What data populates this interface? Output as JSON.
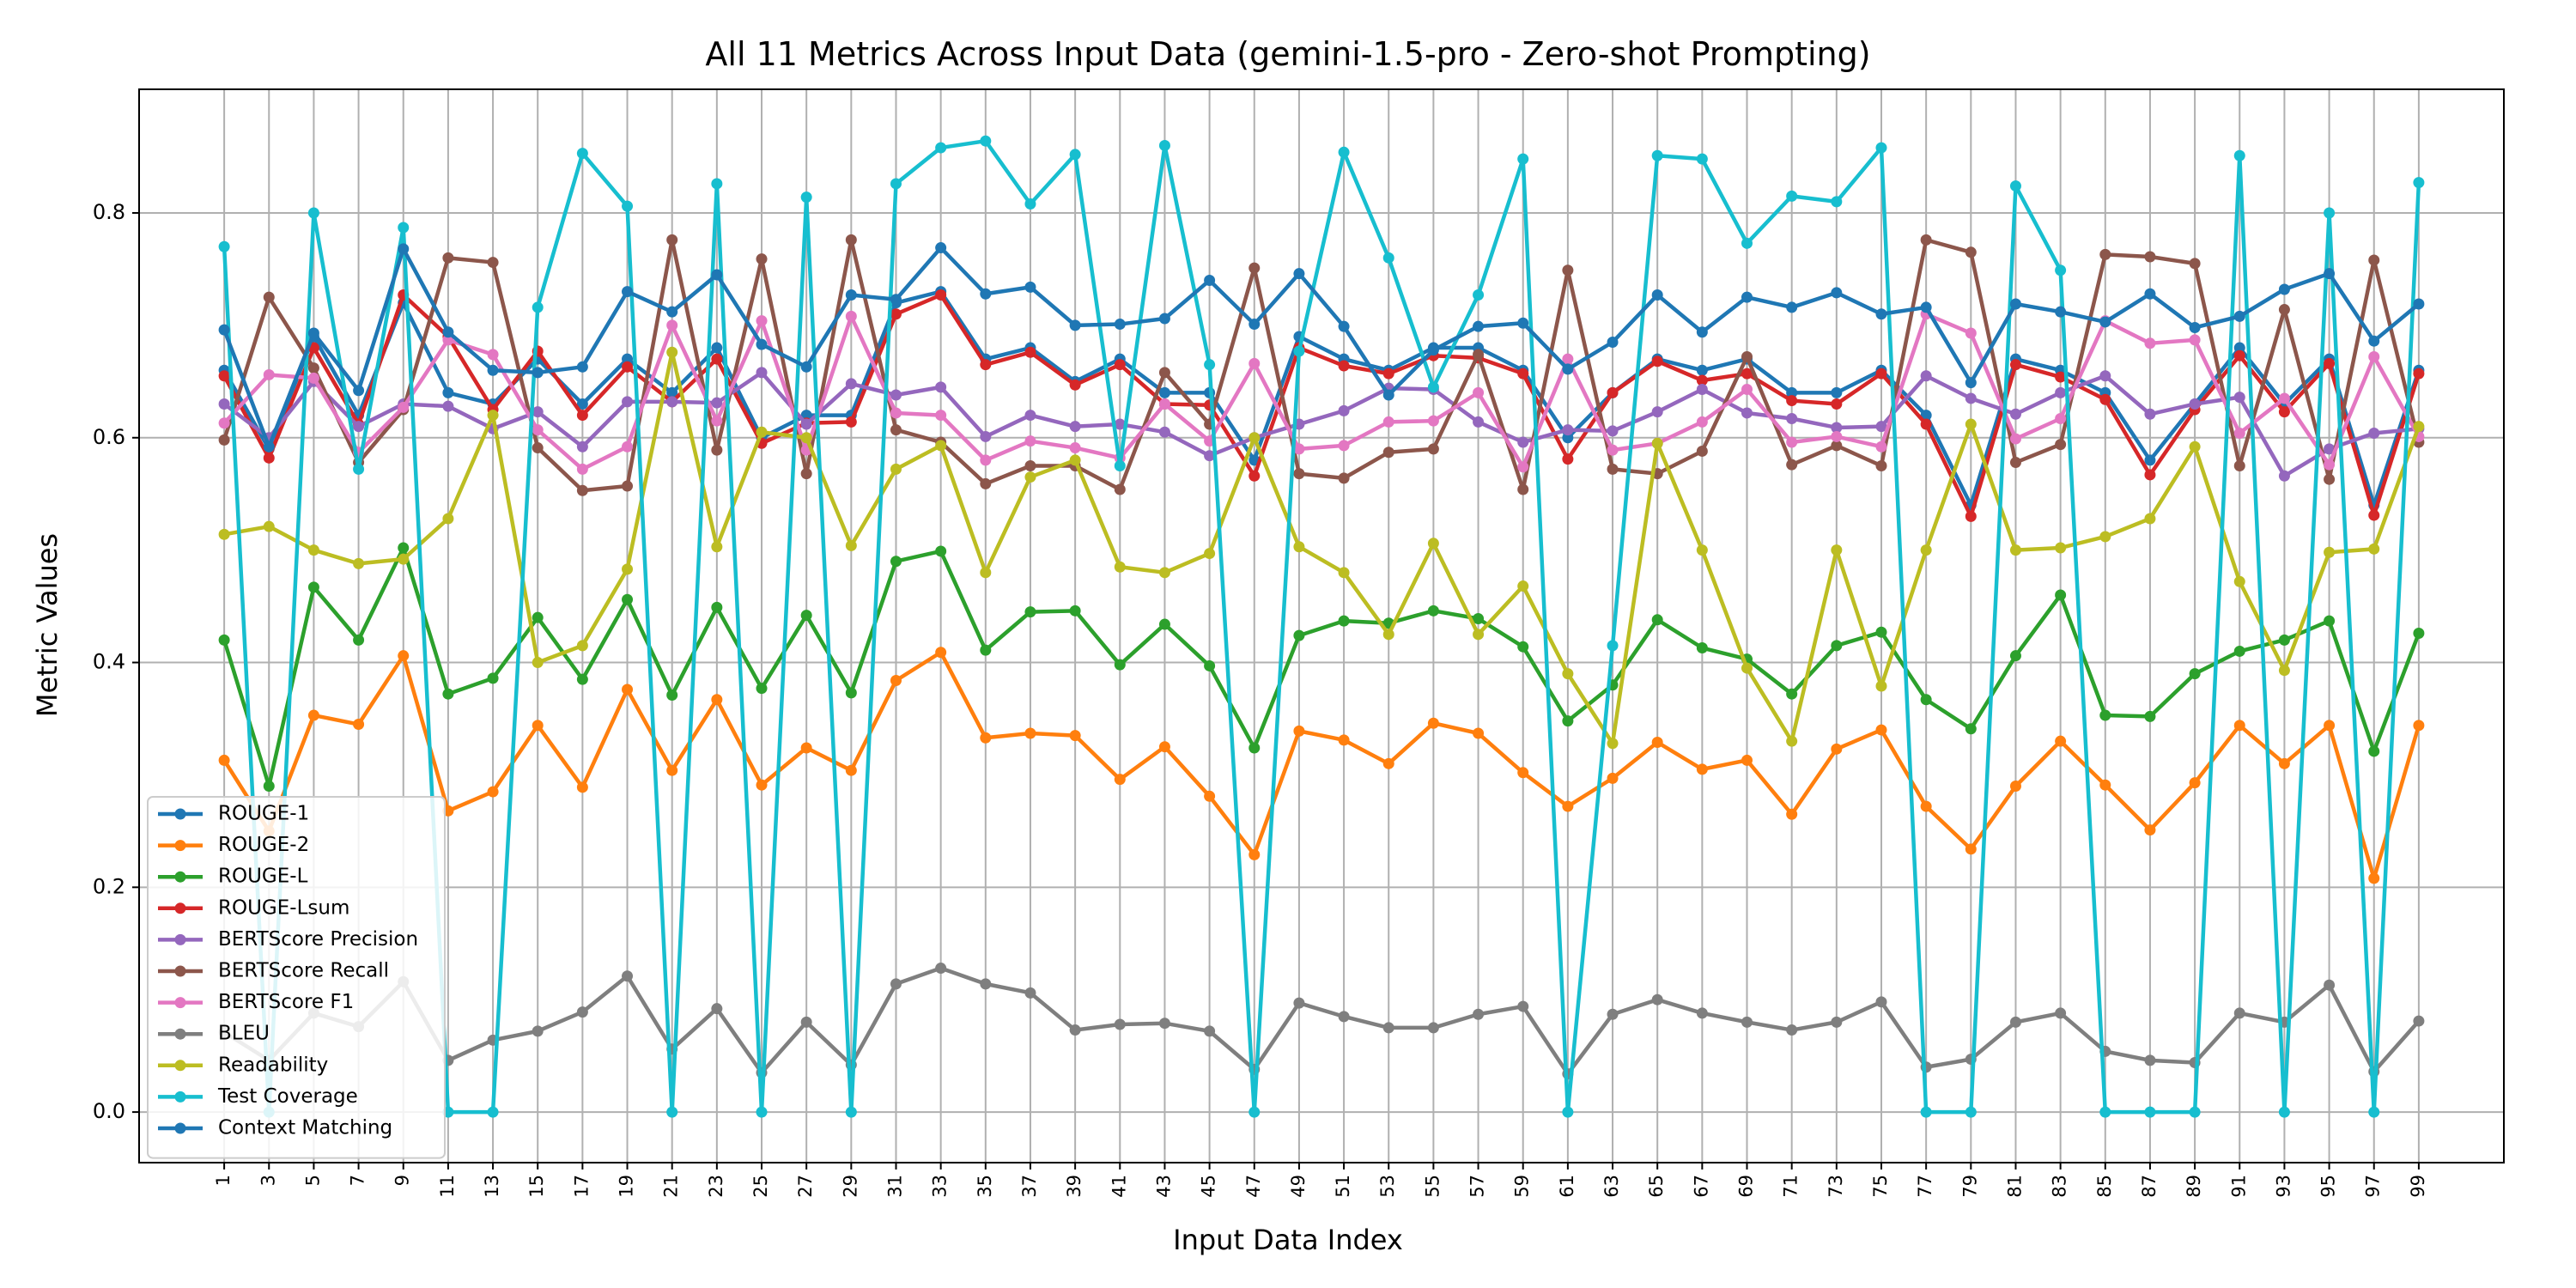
{
  "chart_data": {
    "type": "line",
    "title": "All 11 Metrics Across Input Data (gemini-1.5-pro - Zero-shot Prompting)",
    "xlabel": "Input Data Index",
    "ylabel": "Metric Values",
    "x": [
      1,
      3,
      5,
      7,
      9,
      11,
      13,
      15,
      17,
      19,
      21,
      23,
      25,
      27,
      29,
      31,
      33,
      35,
      37,
      39,
      41,
      43,
      45,
      47,
      49,
      51,
      53,
      55,
      57,
      59,
      61,
      63,
      65,
      67,
      69,
      71,
      73,
      75,
      77,
      79,
      81,
      83,
      85,
      87,
      89,
      91,
      93,
      95,
      97,
      99
    ],
    "xlim": [
      -2.8,
      102.8
    ],
    "ylim": [
      -0.045,
      0.91
    ],
    "yticks": [
      0.0,
      0.2,
      0.4,
      0.6,
      0.8
    ],
    "grid": true,
    "legend_position": "lower-left",
    "series": [
      {
        "name": "ROUGE-1",
        "color": "#1f77b4",
        "values": [
          0.66,
          0.59,
          0.69,
          0.62,
          0.72,
          0.64,
          0.63,
          0.67,
          0.63,
          0.67,
          0.64,
          0.68,
          0.6,
          0.62,
          0.62,
          0.72,
          0.73,
          0.67,
          0.68,
          0.65,
          0.67,
          0.64,
          0.64,
          0.58,
          0.69,
          0.67,
          0.66,
          0.68,
          0.68,
          0.66,
          0.6,
          0.64,
          0.67,
          0.66,
          0.67,
          0.64,
          0.64,
          0.66,
          0.62,
          0.54,
          0.67,
          0.66,
          0.64,
          0.58,
          0.63,
          0.68,
          0.63,
          0.67,
          0.54,
          0.66
        ]
      },
      {
        "name": "ROUGE-2",
        "color": "#ff7f0e",
        "values": [
          0.313,
          0.25,
          0.353,
          0.345,
          0.406,
          0.268,
          0.285,
          0.344,
          0.289,
          0.376,
          0.304,
          0.367,
          0.291,
          0.324,
          0.304,
          0.384,
          0.409,
          0.333,
          0.337,
          0.335,
          0.296,
          0.325,
          0.281,
          0.229,
          0.339,
          0.331,
          0.31,
          0.346,
          0.337,
          0.302,
          0.272,
          0.297,
          0.329,
          0.305,
          0.313,
          0.265,
          0.323,
          0.34,
          0.272,
          0.234,
          0.29,
          0.33,
          0.291,
          0.251,
          0.293,
          0.344,
          0.31,
          0.344,
          0.208,
          0.344
        ]
      },
      {
        "name": "ROUGE-L",
        "color": "#2ca02c",
        "values": [
          0.42,
          0.29,
          0.467,
          0.42,
          0.502,
          0.372,
          0.386,
          0.44,
          0.385,
          0.456,
          0.371,
          0.449,
          0.377,
          0.442,
          0.373,
          0.49,
          0.499,
          0.411,
          0.445,
          0.446,
          0.398,
          0.434,
          0.397,
          0.324,
          0.424,
          0.437,
          0.435,
          0.446,
          0.439,
          0.414,
          0.348,
          0.38,
          0.438,
          0.413,
          0.403,
          0.372,
          0.415,
          0.427,
          0.367,
          0.341,
          0.406,
          0.46,
          0.353,
          0.352,
          0.39,
          0.41,
          0.42,
          0.437,
          0.321,
          0.426
        ]
      },
      {
        "name": "ROUGE-Lsum",
        "color": "#d62728",
        "values": [
          0.655,
          0.582,
          0.68,
          0.612,
          0.727,
          0.69,
          0.625,
          0.677,
          0.62,
          0.663,
          0.632,
          0.67,
          0.595,
          0.613,
          0.614,
          0.71,
          0.727,
          0.665,
          0.676,
          0.647,
          0.665,
          0.63,
          0.629,
          0.566,
          0.68,
          0.664,
          0.657,
          0.673,
          0.671,
          0.657,
          0.581,
          0.64,
          0.668,
          0.651,
          0.657,
          0.633,
          0.63,
          0.657,
          0.612,
          0.53,
          0.665,
          0.654,
          0.634,
          0.567,
          0.625,
          0.673,
          0.623,
          0.666,
          0.531,
          0.657
        ]
      },
      {
        "name": "BERTScore Precision",
        "color": "#9467bd",
        "values": [
          0.63,
          0.6,
          0.65,
          0.61,
          0.63,
          0.628,
          0.608,
          0.623,
          0.592,
          0.632,
          0.632,
          0.631,
          0.658,
          0.612,
          0.648,
          0.638,
          0.645,
          0.601,
          0.62,
          0.61,
          0.612,
          0.605,
          0.584,
          0.6,
          0.612,
          0.624,
          0.644,
          0.643,
          0.614,
          0.596,
          0.607,
          0.606,
          0.623,
          0.643,
          0.622,
          0.617,
          0.609,
          0.61,
          0.655,
          0.635,
          0.621,
          0.64,
          0.655,
          0.621,
          0.63,
          0.636,
          0.566,
          0.59,
          0.604,
          0.608
        ]
      },
      {
        "name": "BERTScore Recall",
        "color": "#8c564b",
        "values": [
          0.598,
          0.725,
          0.662,
          0.578,
          0.625,
          0.76,
          0.756,
          0.591,
          0.553,
          0.557,
          0.776,
          0.589,
          0.759,
          0.568,
          0.776,
          0.607,
          0.596,
          0.559,
          0.575,
          0.575,
          0.554,
          0.658,
          0.612,
          0.751,
          0.568,
          0.564,
          0.587,
          0.59,
          0.674,
          0.554,
          0.749,
          0.572,
          0.568,
          0.588,
          0.672,
          0.576,
          0.593,
          0.575,
          0.776,
          0.765,
          0.578,
          0.594,
          0.763,
          0.761,
          0.755,
          0.575,
          0.714,
          0.563,
          0.758,
          0.596
        ]
      },
      {
        "name": "BERTScore F1",
        "color": "#e377c2",
        "values": [
          0.613,
          0.656,
          0.653,
          0.587,
          0.627,
          0.687,
          0.674,
          0.607,
          0.572,
          0.592,
          0.7,
          0.615,
          0.704,
          0.589,
          0.708,
          0.622,
          0.62,
          0.58,
          0.597,
          0.591,
          0.582,
          0.63,
          0.597,
          0.666,
          0.59,
          0.593,
          0.614,
          0.615,
          0.64,
          0.574,
          0.67,
          0.589,
          0.595,
          0.614,
          0.643,
          0.596,
          0.601,
          0.592,
          0.71,
          0.693,
          0.599,
          0.617,
          0.704,
          0.684,
          0.687,
          0.604,
          0.635,
          0.576,
          0.672,
          0.601
        ]
      },
      {
        "name": "BLEU",
        "color": "#7f7f7f",
        "values": [
          0.071,
          0.046,
          0.088,
          0.076,
          0.116,
          0.046,
          0.064,
          0.072,
          0.089,
          0.121,
          0.056,
          0.092,
          0.035,
          0.08,
          0.042,
          0.114,
          0.128,
          0.114,
          0.106,
          0.073,
          0.078,
          0.079,
          0.072,
          0.038,
          0.097,
          0.085,
          0.075,
          0.075,
          0.087,
          0.094,
          0.034,
          0.087,
          0.1,
          0.088,
          0.08,
          0.073,
          0.08,
          0.098,
          0.04,
          0.047,
          0.08,
          0.088,
          0.054,
          0.046,
          0.044,
          0.088,
          0.08,
          0.113,
          0.036,
          0.081
        ]
      },
      {
        "name": "Readability",
        "color": "#bcbd22",
        "values": [
          0.514,
          0.521,
          0.5,
          0.488,
          0.492,
          0.528,
          0.62,
          0.4,
          0.415,
          0.483,
          0.676,
          0.503,
          0.605,
          0.6,
          0.504,
          0.572,
          0.593,
          0.48,
          0.565,
          0.58,
          0.485,
          0.48,
          0.497,
          0.6,
          0.503,
          0.48,
          0.425,
          0.506,
          0.425,
          0.468,
          0.39,
          0.328,
          0.595,
          0.5,
          0.395,
          0.33,
          0.5,
          0.379,
          0.5,
          0.612,
          0.5,
          0.502,
          0.512,
          0.528,
          0.592,
          0.472,
          0.393,
          0.498,
          0.501,
          0.61
        ]
      },
      {
        "name": "Test Coverage",
        "color": "#17becf",
        "values": [
          0.77,
          0.0,
          0.8,
          0.572,
          0.787,
          0.0,
          0.0,
          0.716,
          0.853,
          0.806,
          0.0,
          0.826,
          0.0,
          0.814,
          0.0,
          0.826,
          0.858,
          0.864,
          0.808,
          0.852,
          0.575,
          0.86,
          0.665,
          0.0,
          0.677,
          0.854,
          0.76,
          0.645,
          0.727,
          0.848,
          0.0,
          0.415,
          0.851,
          0.848,
          0.773,
          0.815,
          0.81,
          0.858,
          0.0,
          0.0,
          0.824,
          0.749,
          0.0,
          0.0,
          0.0,
          0.851,
          0.0,
          0.8,
          0.0,
          0.827
        ]
      },
      {
        "name": "Context Matching",
        "color": "#1f77b4",
        "values": [
          0.696,
          0.592,
          0.693,
          0.642,
          0.768,
          0.694,
          0.66,
          0.658,
          0.663,
          0.73,
          0.712,
          0.745,
          0.683,
          0.663,
          0.727,
          0.723,
          0.769,
          0.728,
          0.734,
          0.7,
          0.701,
          0.706,
          0.74,
          0.701,
          0.746,
          0.699,
          0.638,
          0.678,
          0.699,
          0.702,
          0.661,
          0.685,
          0.727,
          0.694,
          0.725,
          0.716,
          0.729,
          0.71,
          0.716,
          0.649,
          0.719,
          0.712,
          0.703,
          0.728,
          0.698,
          0.708,
          0.732,
          0.746,
          0.686,
          0.719
        ]
      }
    ]
  }
}
